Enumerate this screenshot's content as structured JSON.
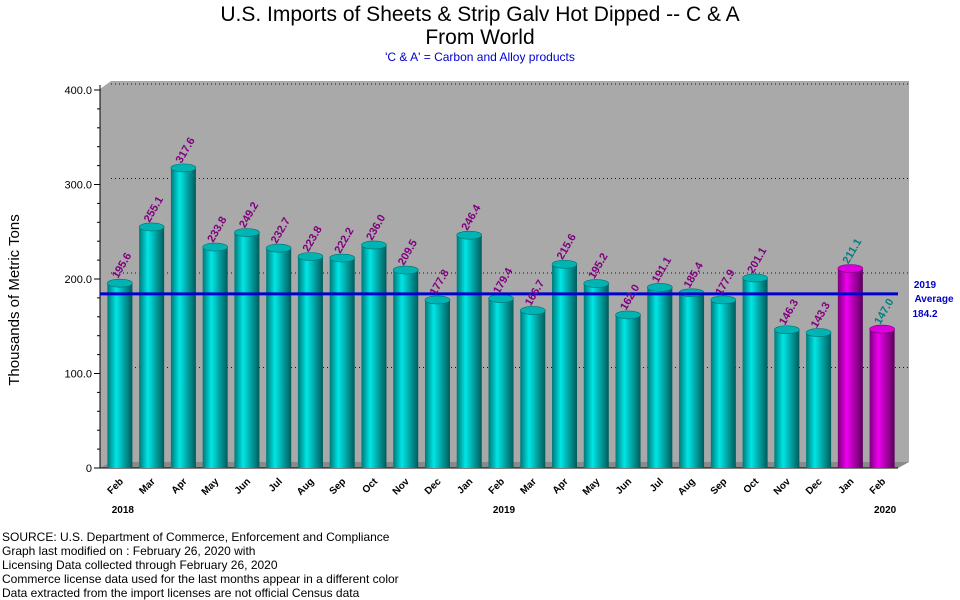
{
  "title_line1": "U.S. Imports of Sheets & Strip Galv Hot Dipped -- C & A",
  "title_line2": "From World",
  "subtitle": "'C & A' = Carbon and Alloy products",
  "source_lines": [
    "SOURCE: U.S. Department of Commerce, Enforcement and Compliance",
    "Graph last modified on : February 26, 2020  with",
    "Licensing Data collected through February 26, 2020",
    "Commerce license data used for the last months appear in a different color",
    "Data extracted from the import licenses are not official Census data"
  ],
  "chart_data": {
    "type": "bar",
    "ylabel": "Thousands of Metric Tons",
    "ylim": [
      0,
      400
    ],
    "yticks": [
      "0",
      "100.0",
      "200.0",
      "300.0",
      "400.0"
    ],
    "grid": true,
    "categories": [
      "Feb",
      "Mar",
      "Apr",
      "May",
      "Jun",
      "Jul",
      "Aug",
      "Sep",
      "Oct",
      "Nov",
      "Dec",
      "Jan",
      "Feb",
      "Mar",
      "Apr",
      "May",
      "Jun",
      "Jul",
      "Aug",
      "Sep",
      "Oct",
      "Nov",
      "Dec",
      "Jan",
      "Feb"
    ],
    "values": [
      195.6,
      255.1,
      317.6,
      233.8,
      249.2,
      232.7,
      223.8,
      222.2,
      236.0,
      209.5,
      177.8,
      246.4,
      179.4,
      166.7,
      215.6,
      195.2,
      162.0,
      191.1,
      185.4,
      177.9,
      201.1,
      146.3,
      143.3,
      211.1,
      147.0
    ],
    "value_labels": [
      "195.6",
      "255.1",
      "317.6",
      "233.8",
      "249.2",
      "232.7",
      "223.8",
      "222.2",
      "236.0",
      "209.5",
      "177.8",
      "246.4",
      "179.4",
      "166.7",
      "215.6",
      "195.2",
      "162.0",
      "191.1",
      "185.4",
      "177.9",
      "201.1",
      "146.3",
      "143.3",
      "211.1",
      "147.0"
    ],
    "bar_type": [
      "census",
      "census",
      "census",
      "census",
      "census",
      "census",
      "census",
      "census",
      "census",
      "census",
      "census",
      "census",
      "census",
      "census",
      "census",
      "census",
      "census",
      "census",
      "census",
      "census",
      "census",
      "census",
      "census",
      "license",
      "license"
    ],
    "year_labels": [
      {
        "index": 0,
        "label": "2018"
      },
      {
        "index": 12,
        "label": "2019"
      },
      {
        "index": 24,
        "label": "2020"
      }
    ],
    "average": {
      "value": 184.2,
      "line1": "2019",
      "line2": "Average",
      "line3": "184.2"
    },
    "colors": {
      "census_bar": "#00c8c8",
      "license_bar": "#cc00cc",
      "census_label": "#800080",
      "license_label": "#008080",
      "average_line": "#0000cc",
      "plot_background": "#a9a9a9"
    }
  }
}
